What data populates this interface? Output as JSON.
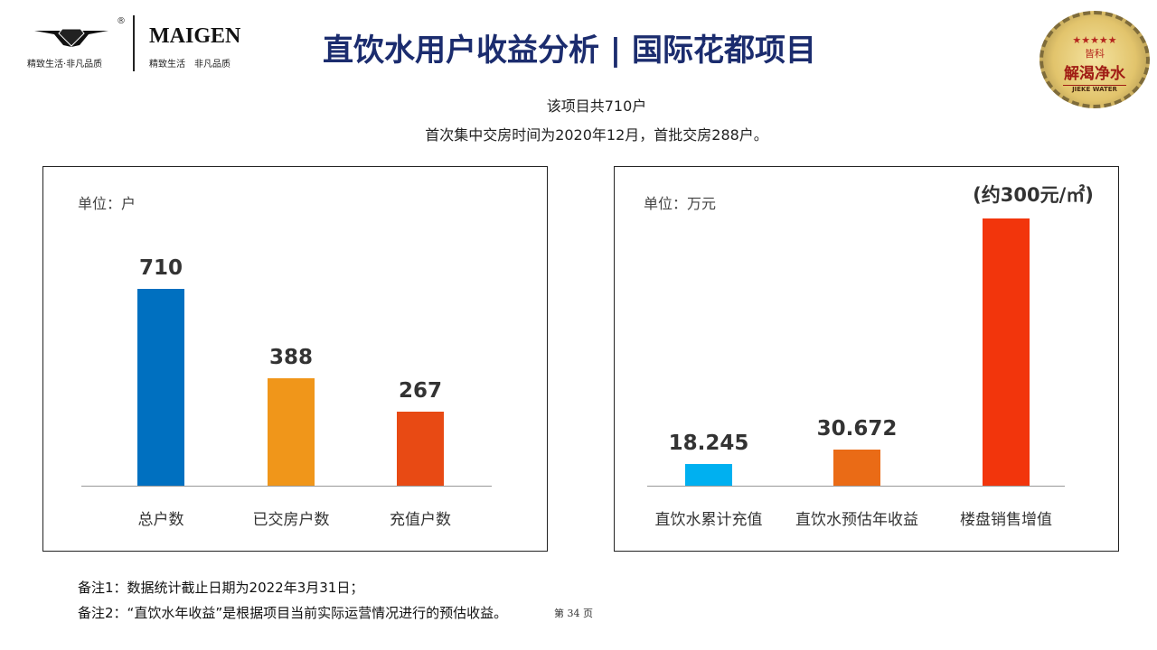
{
  "header": {
    "logo_slogan_left": "精致生活·非凡品质",
    "brand": "MAIGEN",
    "logo_slogan_right": "精致生活　非凡品质",
    "registered": "®",
    "title": "直饮水用户收益分析 | 国际花都项目",
    "seal": {
      "top": "皆科",
      "main": "解渴净水",
      "bottom": "JIEKE WATER"
    }
  },
  "summary": {
    "line1": "该项目共710户",
    "line2": "首次集中交房时间为2020年12月，首批交房288户。"
  },
  "chart_data": [
    {
      "type": "bar",
      "unit_label": "单位：户",
      "categories": [
        "总户数",
        "已交房户数",
        "充值户数"
      ],
      "values": [
        710,
        388,
        267
      ],
      "value_labels": [
        "710",
        "388",
        "267"
      ],
      "colors": [
        "#0070c0",
        "#f0961a",
        "#e84a14"
      ],
      "ylim": [
        0,
        1100
      ],
      "grid": false
    },
    {
      "type": "bar",
      "unit_label": "单位：万元",
      "categories": [
        "直饮水累计充值",
        "直饮水预估年收益",
        "楼盘销售增值"
      ],
      "values": [
        18.245,
        30.672,
        null
      ],
      "value_labels": [
        "18.245",
        "30.672",
        "(约300元/㎡)"
      ],
      "colors": [
        "#00b0f0",
        "#ea6b16",
        "#f2350c"
      ],
      "ylim": [
        0,
        260
      ],
      "grid": false
    }
  ],
  "notes": [
    "备注1：数据统计截止日期为2022年3月31日；",
    "备注2：“直饮水年收益”是根据项目当前实际运营情况进行的预估收益。"
  ],
  "page": "第 34 页"
}
